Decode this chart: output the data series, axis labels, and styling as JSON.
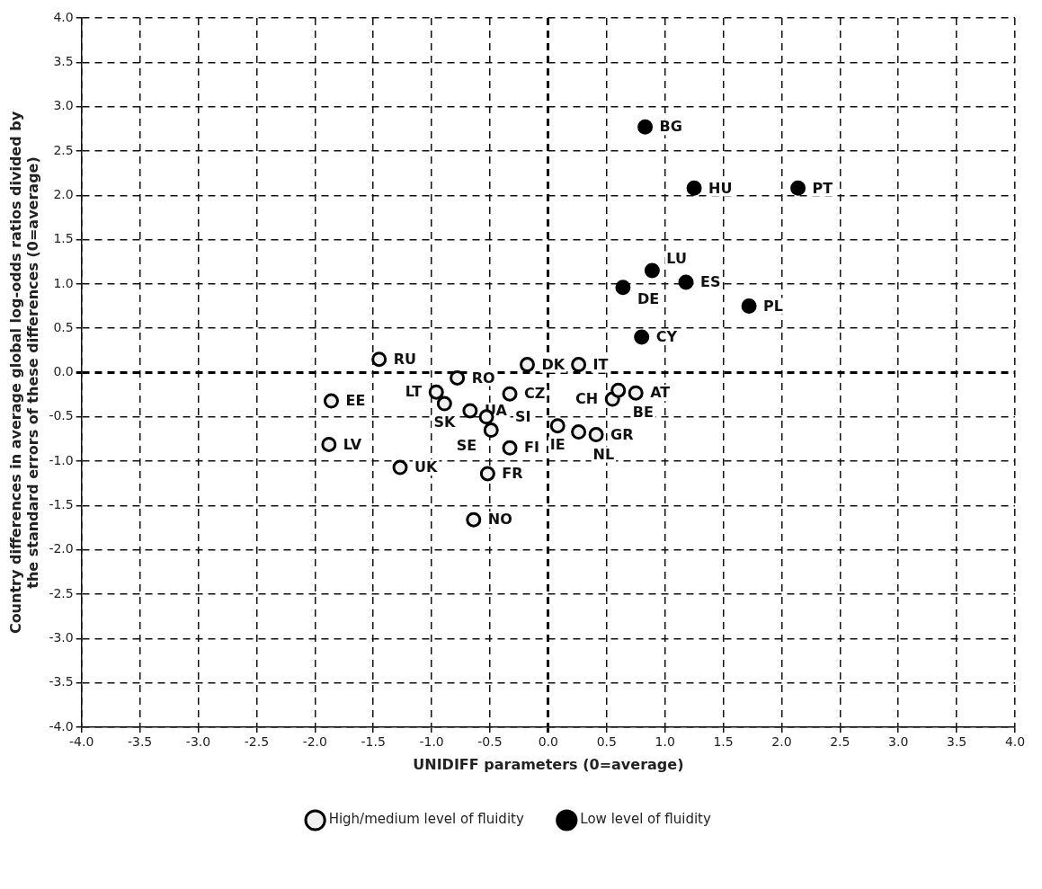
{
  "chart_data": {
    "type": "scatter",
    "xlabel": "UNIDIFF parameters (0=average)",
    "ylabel": "Country differences in average global log-odds ratios divided by\nthe standard errors of these differences (0=average)",
    "xlim": [
      -4,
      4
    ],
    "ylim": [
      -4,
      4
    ],
    "xticks": [
      {
        "value": -4,
        "label": "-4.0"
      },
      {
        "value": -3.5,
        "label": "-3.5"
      },
      {
        "value": -3,
        "label": "-3.0"
      },
      {
        "value": -2.5,
        "label": "-2.5"
      },
      {
        "value": -2,
        "label": "-2.0"
      },
      {
        "value": -1.5,
        "label": "-1.5"
      },
      {
        "value": -1,
        "label": "-1.0"
      },
      {
        "value": -0.5,
        "label": "-0.5"
      },
      {
        "value": 0,
        "label": "0.0"
      },
      {
        "value": 0.5,
        "label": "0.5"
      },
      {
        "value": 1,
        "label": "1.0"
      },
      {
        "value": 1.5,
        "label": "1.5"
      },
      {
        "value": 2,
        "label": "2.0"
      },
      {
        "value": 2.5,
        "label": "2.5"
      },
      {
        "value": 3,
        "label": "3.0"
      },
      {
        "value": 3.5,
        "label": "3.5"
      },
      {
        "value": 4,
        "label": "4.0"
      }
    ],
    "yticks": [
      {
        "value": -4,
        "label": "-4.0"
      },
      {
        "value": -3.5,
        "label": "-3.5"
      },
      {
        "value": -3,
        "label": "-3.0"
      },
      {
        "value": -2.5,
        "label": "-2.5"
      },
      {
        "value": -2,
        "label": "-2.0"
      },
      {
        "value": -1.5,
        "label": "-1.5"
      },
      {
        "value": -1,
        "label": "-1.0"
      },
      {
        "value": -0.5,
        "label": "-0.5"
      },
      {
        "value": 0,
        "label": "0.0"
      },
      {
        "value": 0.5,
        "label": "0.5"
      },
      {
        "value": 1,
        "label": "1.0"
      },
      {
        "value": 1.5,
        "label": "1.5"
      },
      {
        "value": 2,
        "label": "2.0"
      },
      {
        "value": 2.5,
        "label": "2.5"
      },
      {
        "value": 3,
        "label": "3.0"
      },
      {
        "value": 3.5,
        "label": "3.5"
      },
      {
        "value": 4,
        "label": "4.0"
      }
    ],
    "grid": true,
    "legend": "bottom",
    "marker": "circle",
    "series": [
      {
        "name": "High/medium level of fluidity",
        "color": "#f0f0f0",
        "x": [
          -1.45,
          -0.18,
          0.26,
          -0.78,
          -0.96,
          -0.89,
          -1.86,
          -0.33,
          -0.67,
          -0.53,
          -0.49,
          -0.33,
          -1.88,
          -1.27,
          -0.52,
          -0.64,
          0.08,
          0.26,
          0.41,
          0.55,
          0.6,
          0.75
        ],
        "values": [
          0.15,
          0.09,
          0.09,
          -0.06,
          -0.22,
          -0.35,
          -0.32,
          -0.24,
          -0.43,
          -0.5,
          -0.65,
          -0.85,
          -0.81,
          -1.07,
          -1.14,
          -1.66,
          -0.6,
          -0.67,
          -0.7,
          -0.3,
          -0.2,
          -0.23
        ]
      },
      {
        "name": "Low level of fluidity",
        "color": "#000000",
        "x": [
          0.83,
          1.25,
          2.14,
          0.89,
          0.64,
          1.18,
          1.72,
          0.8
        ],
        "values": [
          2.77,
          2.08,
          2.08,
          1.15,
          0.96,
          1.02,
          0.75,
          0.4
        ]
      }
    ],
    "annotations": [
      {
        "text": "RU",
        "x": -1.45,
        "y": 0.15
      },
      {
        "text": "DK",
        "x": -0.18,
        "y": 0.09
      },
      {
        "text": "IT",
        "x": 0.26,
        "y": 0.09
      },
      {
        "text": "RO",
        "x": -0.78,
        "y": -0.06
      },
      {
        "text": "LT",
        "x": -0.96,
        "y": -0.22
      },
      {
        "text": "SK",
        "x": -0.89,
        "y": -0.35
      },
      {
        "text": "EE",
        "x": -1.86,
        "y": -0.32
      },
      {
        "text": "CZ",
        "x": -0.33,
        "y": -0.24
      },
      {
        "text": "UA",
        "x": -0.67,
        "y": -0.43
      },
      {
        "text": "SI",
        "x": -0.53,
        "y": -0.5
      },
      {
        "text": "SE",
        "x": -0.49,
        "y": -0.65
      },
      {
        "text": "FI",
        "x": -0.33,
        "y": -0.85
      },
      {
        "text": "LV",
        "x": -1.88,
        "y": -0.81
      },
      {
        "text": "UK",
        "x": -1.27,
        "y": -1.07
      },
      {
        "text": "FR",
        "x": -0.52,
        "y": -1.14
      },
      {
        "text": "NO",
        "x": -0.64,
        "y": -1.66
      },
      {
        "text": "IE",
        "x": 0.08,
        "y": -0.6
      },
      {
        "text": "NL",
        "x": 0.26,
        "y": -0.67
      },
      {
        "text": "GR",
        "x": 0.41,
        "y": -0.7
      },
      {
        "text": "CH",
        "x": 0.55,
        "y": -0.3
      },
      {
        "text": "BE",
        "x": 0.6,
        "y": -0.2
      },
      {
        "text": "AT",
        "x": 0.75,
        "y": -0.23
      },
      {
        "text": "BG",
        "x": 0.83,
        "y": 2.77
      },
      {
        "text": "HU",
        "x": 1.25,
        "y": 2.08
      },
      {
        "text": "PT",
        "x": 2.14,
        "y": 2.08
      },
      {
        "text": "LU",
        "x": 0.89,
        "y": 1.15
      },
      {
        "text": "DE",
        "x": 0.64,
        "y": 0.96
      },
      {
        "text": "ES",
        "x": 1.18,
        "y": 1.02
      },
      {
        "text": "PL",
        "x": 1.72,
        "y": 0.75
      },
      {
        "text": "CY",
        "x": 0.8,
        "y": 0.4
      }
    ]
  }
}
